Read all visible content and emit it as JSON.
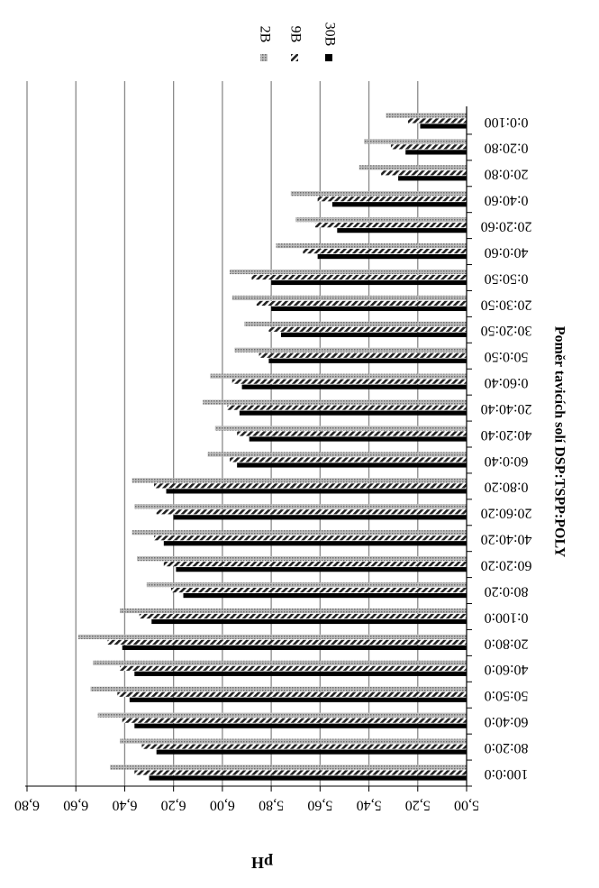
{
  "chart_data": {
    "type": "bar",
    "orientation": "horizontal",
    "xlabel": "Poměr tavicích solí DSP:TSPP:POLY",
    "ylabel": "pH",
    "ylim": [
      5.0,
      6.8
    ],
    "ytick_step": 0.2,
    "grid": true,
    "legend_position": "top-right",
    "categories": [
      "100:0:0",
      "80:20:0",
      "60:40:0",
      "50:50:0",
      "40:60:0",
      "20:80:0",
      "0:100:0",
      "80:0:20",
      "60:20:20",
      "40:40:20",
      "20:60:20",
      "0:80:20",
      "60:0:40",
      "40:20:40",
      "20:40:40",
      "0:60:40",
      "50:0:50",
      "30:20:50",
      "20:30:50",
      "0:50:50",
      "40:0:60",
      "20:20:60",
      "0:40:60",
      "20:0:80",
      "0:20:80",
      "0:0:100"
    ],
    "series": [
      {
        "name": "2B",
        "values": [
          6.46,
          6.42,
          6.51,
          6.54,
          6.53,
          6.59,
          6.42,
          6.31,
          6.35,
          6.37,
          6.36,
          6.37,
          6.06,
          6.03,
          6.08,
          6.05,
          5.95,
          5.91,
          5.96,
          5.97,
          5.78,
          5.7,
          5.72,
          5.44,
          5.42,
          5.33
        ]
      },
      {
        "name": "9B",
        "values": [
          6.36,
          6.33,
          6.41,
          6.43,
          6.42,
          6.47,
          6.34,
          6.21,
          6.24,
          6.28,
          6.27,
          6.28,
          5.97,
          5.94,
          5.98,
          5.96,
          5.85,
          5.81,
          5.86,
          5.88,
          5.67,
          5.62,
          5.61,
          5.35,
          5.31,
          5.24
        ]
      },
      {
        "name": "30B",
        "values": [
          6.3,
          6.27,
          6.36,
          6.38,
          6.36,
          6.41,
          6.29,
          6.16,
          6.19,
          6.24,
          6.2,
          6.23,
          5.94,
          5.89,
          5.93,
          5.92,
          5.81,
          5.76,
          5.8,
          5.8,
          5.61,
          5.53,
          5.55,
          5.28,
          5.25,
          5.19
        ]
      }
    ],
    "series_colors": [
      "#8c8c8c",
      "#4a4a4a",
      "#000000"
    ],
    "series_patterns": [
      "dense-gray-hatch",
      "diagonal-stripes",
      "solid"
    ]
  }
}
